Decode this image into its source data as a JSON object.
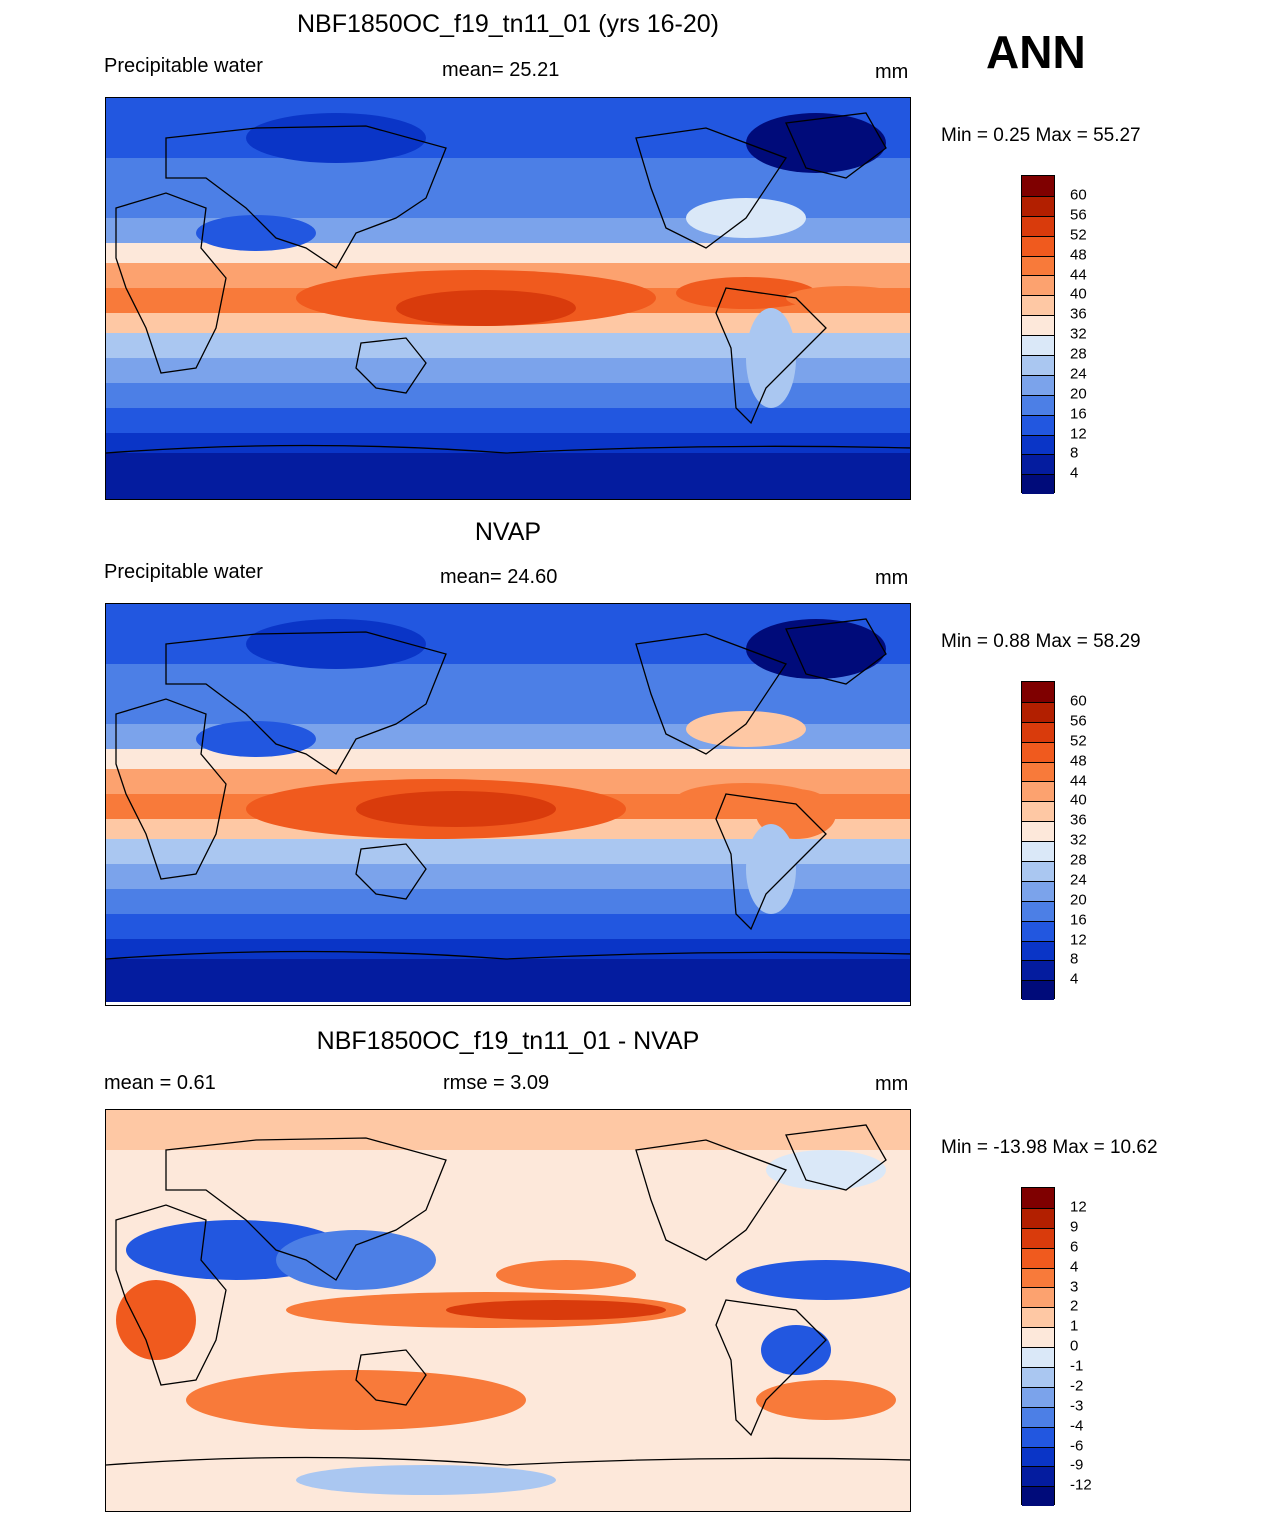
{
  "season": "ANN",
  "panels": [
    {
      "id": "model",
      "title": "NBF1850OC_f19_tn11_01 (yrs 16-20)",
      "left_label": "Precipitable water",
      "center_label": "mean=  25.21",
      "units": "mm",
      "minmax": "Min =   0.25 Max =  55.27",
      "colorbar": {
        "labels": [
          "60",
          "56",
          "52",
          "48",
          "44",
          "40",
          "36",
          "32",
          "28",
          "24",
          "20",
          "16",
          "12",
          "8",
          "4"
        ],
        "colors": [
          "#7f0000",
          "#b21f00",
          "#d93b0c",
          "#f05a1e",
          "#f87a3a",
          "#fca26f",
          "#fec8a4",
          "#fde8da",
          "#dae8f8",
          "#aac7f1",
          "#7ba3eb",
          "#4c7fe6",
          "#2257e0",
          "#0a35c7",
          "#041c9f",
          "#000b7a"
        ]
      }
    },
    {
      "id": "obs",
      "title": "NVAP",
      "left_label": "Precipitable water",
      "center_label": "mean=  24.60",
      "units": "mm",
      "minmax": "Min =   0.88 Max =  58.29",
      "colorbar": {
        "labels": [
          "60",
          "56",
          "52",
          "48",
          "44",
          "40",
          "36",
          "32",
          "28",
          "24",
          "20",
          "16",
          "12",
          "8",
          "4"
        ],
        "colors": [
          "#7f0000",
          "#b21f00",
          "#d93b0c",
          "#f05a1e",
          "#f87a3a",
          "#fca26f",
          "#fec8a4",
          "#fde8da",
          "#dae8f8",
          "#aac7f1",
          "#7ba3eb",
          "#4c7fe6",
          "#2257e0",
          "#0a35c7",
          "#041c9f",
          "#000b7a"
        ]
      }
    },
    {
      "id": "diff",
      "title": "NBF1850OC_f19_tn11_01 - NVAP",
      "left_label": "mean =    0.61",
      "center_label": "rmse =    3.09",
      "units": "mm",
      "minmax": "Min = -13.98 Max =  10.62",
      "colorbar": {
        "labels": [
          "12",
          "9",
          "6",
          "4",
          "3",
          "2",
          "1",
          "0",
          "-1",
          "-2",
          "-3",
          "-4",
          "-6",
          "-9",
          "-12"
        ],
        "colors": [
          "#7f0000",
          "#b21f00",
          "#d93b0c",
          "#f05a1e",
          "#f87a3a",
          "#fca26f",
          "#fec8a4",
          "#fde8da",
          "#dae8f8",
          "#aac7f1",
          "#7ba3eb",
          "#4c7fe6",
          "#2257e0",
          "#0a35c7",
          "#041c9f",
          "#000b7a"
        ]
      }
    }
  ]
}
